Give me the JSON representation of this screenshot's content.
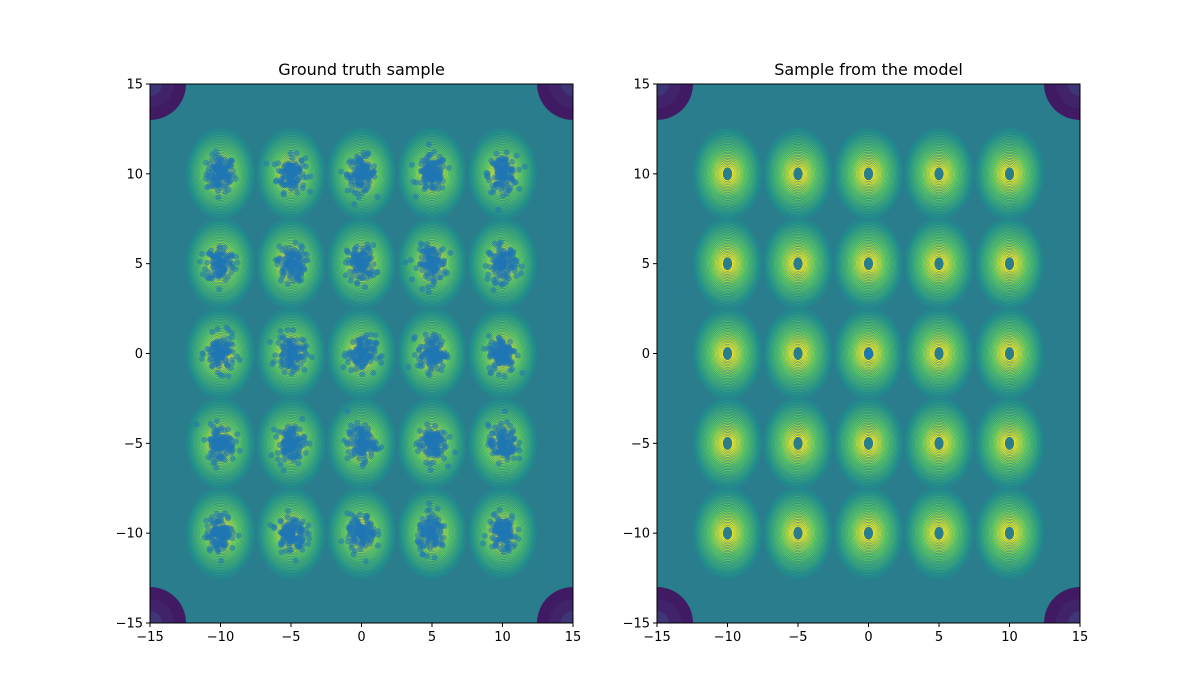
{
  "chart_data": [
    {
      "type": "scatter",
      "title": "Ground truth sample",
      "xlabel": "",
      "ylabel": "",
      "xlim": [
        -15,
        15
      ],
      "ylim": [
        -15,
        15
      ],
      "xticks": [
        -15,
        -10,
        -5,
        0,
        5,
        10,
        15
      ],
      "yticks": [
        -15,
        -10,
        -5,
        0,
        5,
        10,
        15
      ],
      "xtick_labels": [
        "−15",
        "−10",
        "−5",
        "0",
        "5",
        "10",
        "15"
      ],
      "ytick_labels": [
        "−15",
        "−10",
        "−5",
        "0",
        "5",
        "10",
        "15"
      ],
      "background": "contour",
      "mixture_centers_x": [
        -10,
        -5,
        0,
        5,
        10
      ],
      "mixture_centers_y": [
        -10,
        -5,
        0,
        5,
        10
      ],
      "cluster_std": 0.5,
      "points_per_cluster": 120,
      "sample_centers": [
        [
          -10,
          10
        ],
        [
          -5,
          10
        ],
        [
          0,
          10
        ],
        [
          5,
          10
        ],
        [
          10,
          10
        ],
        [
          -10,
          5
        ],
        [
          -5,
          5
        ],
        [
          0,
          5
        ],
        [
          5,
          5
        ],
        [
          10,
          5
        ],
        [
          -10,
          0
        ],
        [
          -5,
          0
        ],
        [
          0,
          0
        ],
        [
          5,
          0
        ],
        [
          10,
          0
        ],
        [
          -10,
          -5
        ],
        [
          -5,
          -5
        ],
        [
          0,
          -5
        ],
        [
          5,
          -5
        ],
        [
          10,
          -5
        ],
        [
          -10,
          -10
        ],
        [
          -5,
          -10
        ],
        [
          0,
          -10
        ],
        [
          5,
          -10
        ],
        [
          10,
          -10
        ]
      ],
      "grid": false
    },
    {
      "type": "scatter",
      "title": "Sample from the model",
      "xlabel": "",
      "ylabel": "",
      "xlim": [
        -15,
        15
      ],
      "ylim": [
        -15,
        15
      ],
      "xticks": [
        -15,
        -10,
        -5,
        0,
        5,
        10,
        15
      ],
      "yticks": [
        -15,
        -10,
        -5,
        0,
        5,
        10,
        15
      ],
      "xtick_labels": [
        "−15",
        "−10",
        "−5",
        "0",
        "5",
        "10",
        "15"
      ],
      "ytick_labels": [
        "−15",
        "−10",
        "−5",
        "0",
        "5",
        "10",
        "15"
      ],
      "background": "contour",
      "mixture_centers_x": [
        -10,
        -5,
        0,
        5,
        10
      ],
      "mixture_centers_y": [
        -10,
        -5,
        0,
        5,
        10
      ],
      "cluster_std": 0.05,
      "points_per_cluster": 60,
      "sample_centers": [
        [
          0,
          0
        ]
      ],
      "grid": false
    }
  ],
  "colors": {
    "points": "#1f77b4",
    "viridis_low": "#440154",
    "viridis_mid": "#21918c",
    "viridis_high": "#fde725"
  }
}
